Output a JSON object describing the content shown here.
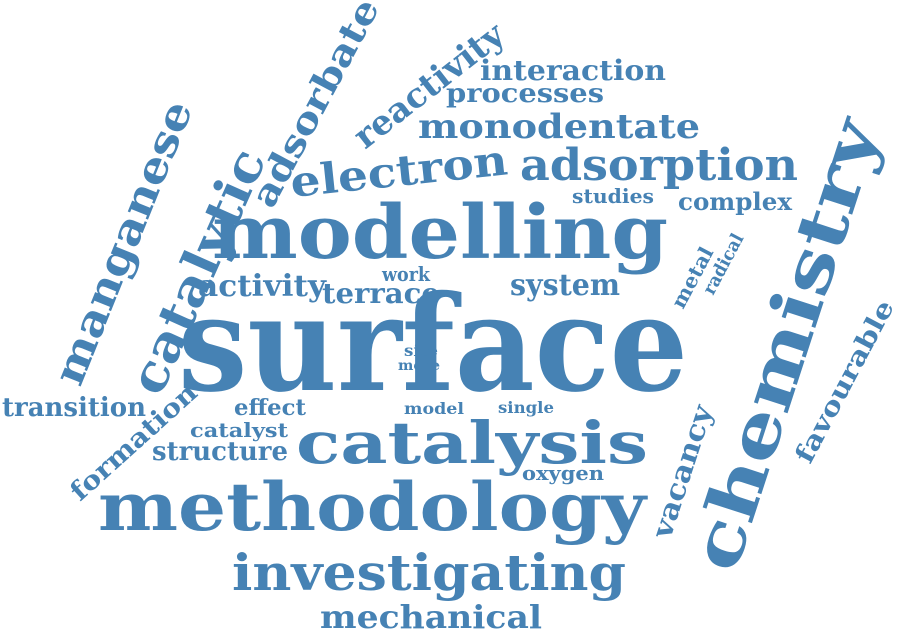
{
  "word_cloud": {
    "color": "#4682b4",
    "words": {
      "surface": "surface",
      "modelling": "modelling",
      "methodology": "methodology",
      "chemistry": "chemistry",
      "catalysis": "catalysis",
      "investigating": "investigating",
      "catalytic": "catalytic",
      "adsorption": "adsorption",
      "electron": "electron",
      "manganese": "manganese",
      "adsorbate": "adsorbate",
      "reactivity": "reactivity",
      "monodentate": "monodentate",
      "interaction": "interaction",
      "processes": "processes",
      "mechanical": "mechanical",
      "activity": "activity",
      "terrace": "terrace",
      "system": "system",
      "transition": "transition",
      "formation": "formation",
      "structure": "structure",
      "catalyst": "catalyst",
      "effect": "effect",
      "vacancy": "vacancy",
      "favourable": "favourable",
      "complex": "complex",
      "studies": "studies",
      "metal": "metal",
      "radical": "radical",
      "work": "work",
      "site": "site",
      "more": "more",
      "model": "model",
      "single": "single",
      "oxygen": "oxygen"
    }
  }
}
